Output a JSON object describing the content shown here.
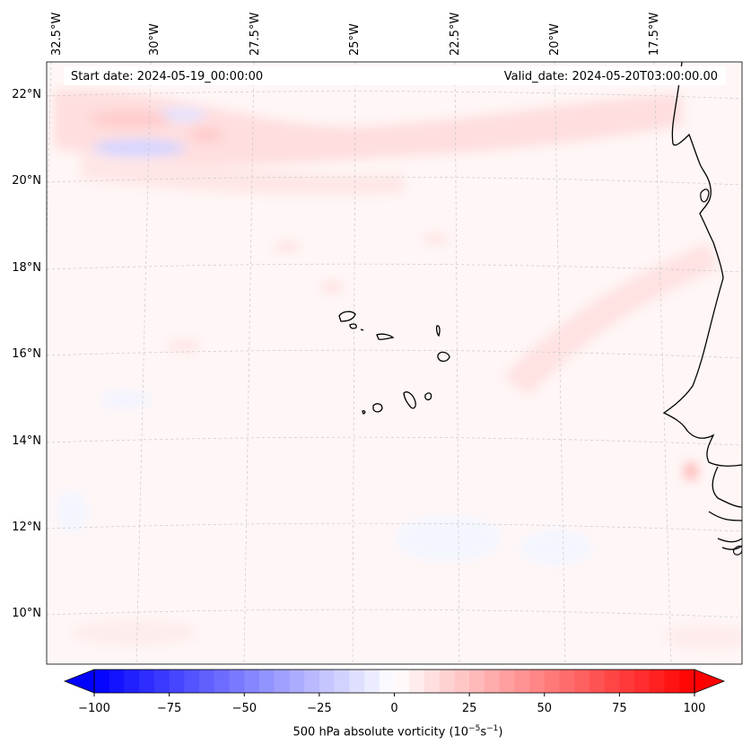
{
  "header": {
    "start_date": "Start date: 2024-05-19_00:00:00",
    "valid_date": "Valid_date: 2024-05-20T03:00:00.00"
  },
  "longitude_labels": [
    "32.5°W",
    "30°W",
    "27.5°W",
    "25°W",
    "22.5°W",
    "20°W",
    "17.5°W"
  ],
  "latitude_labels": [
    "22°N",
    "20°N",
    "18°N",
    "16°N",
    "14°N",
    "12°N",
    "10°N"
  ],
  "colorbar": {
    "ticks": [
      "−100",
      "−75",
      "−50",
      "−25",
      "0",
      "25",
      "50",
      "75",
      "100"
    ],
    "label_text": "500 hPa absolute vorticity (10",
    "label_exp1": "−5",
    "label_mid": "s",
    "label_exp2": "−1",
    "label_end": ")",
    "min": -100,
    "max": 100,
    "low_color": "#0000ff",
    "mid_color": "#ffffff",
    "high_color": "#ff0000"
  },
  "colors": {
    "background_field": "#fff5f5",
    "coastline": "#000000",
    "gridline": "#c8c8c8"
  }
}
